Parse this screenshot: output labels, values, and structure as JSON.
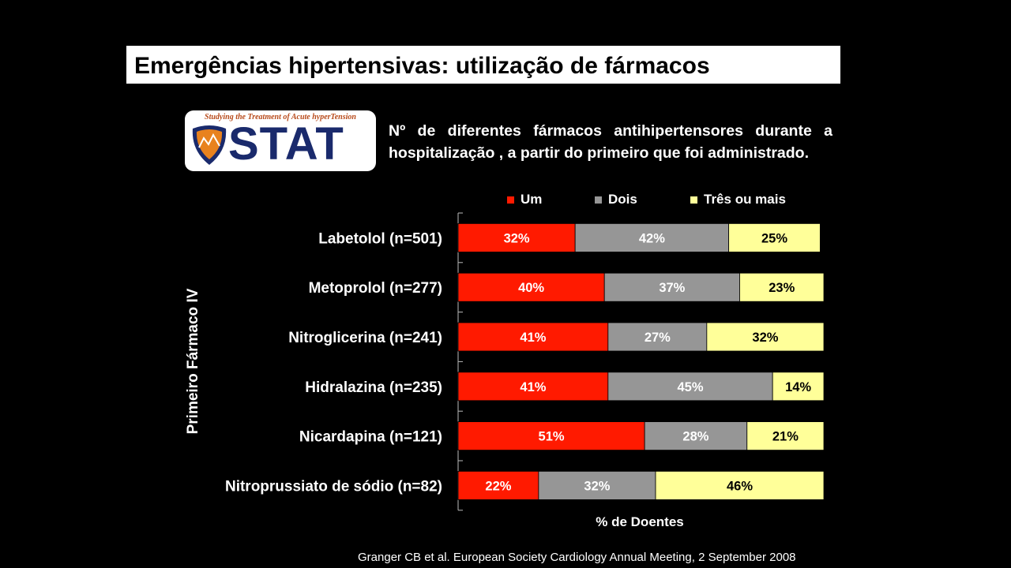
{
  "slide": {
    "title": "Emergências hipertensivas: utilização de fármacos",
    "subtitle": "Nº de diferentes fármacos antihipertensores durante a hospitalização , a partir do primeiro que foi administrado.",
    "footnote": "Granger CB et al. European Society Cardiology Annual Meeting, 2 September 2008"
  },
  "logo": {
    "tagline": "Studying the Treatment of Acute hyperTension",
    "word": "STAT"
  },
  "colors": {
    "um": "#ff1a00",
    "dois": "#969696",
    "tres": "#ffff99",
    "bar_outline": "#000000"
  },
  "chart_data": {
    "type": "bar",
    "orientation": "horizontal",
    "stacked": true,
    "categories": [
      "Labetolol (n=501)",
      "Metoprolol (n=277)",
      "Nitroglicerina (n=241)",
      "Hidralazina (n=235)",
      "Nicardapina (n=121)",
      "Nitroprussiato de sódio (n=82)"
    ],
    "series": [
      {
        "name": "Um",
        "values": [
          32,
          40,
          41,
          41,
          51,
          22
        ]
      },
      {
        "name": "Dois",
        "values": [
          42,
          37,
          27,
          45,
          28,
          32
        ]
      },
      {
        "name": "Três ou mais",
        "values": [
          25,
          23,
          32,
          14,
          21,
          46
        ]
      }
    ],
    "value_suffix": "%",
    "xlabel": "% de Doentes",
    "ylabel": "Primeiro Fármaco IV",
    "xlim": [
      0,
      100
    ],
    "legend_position": "top",
    "grid": false
  }
}
